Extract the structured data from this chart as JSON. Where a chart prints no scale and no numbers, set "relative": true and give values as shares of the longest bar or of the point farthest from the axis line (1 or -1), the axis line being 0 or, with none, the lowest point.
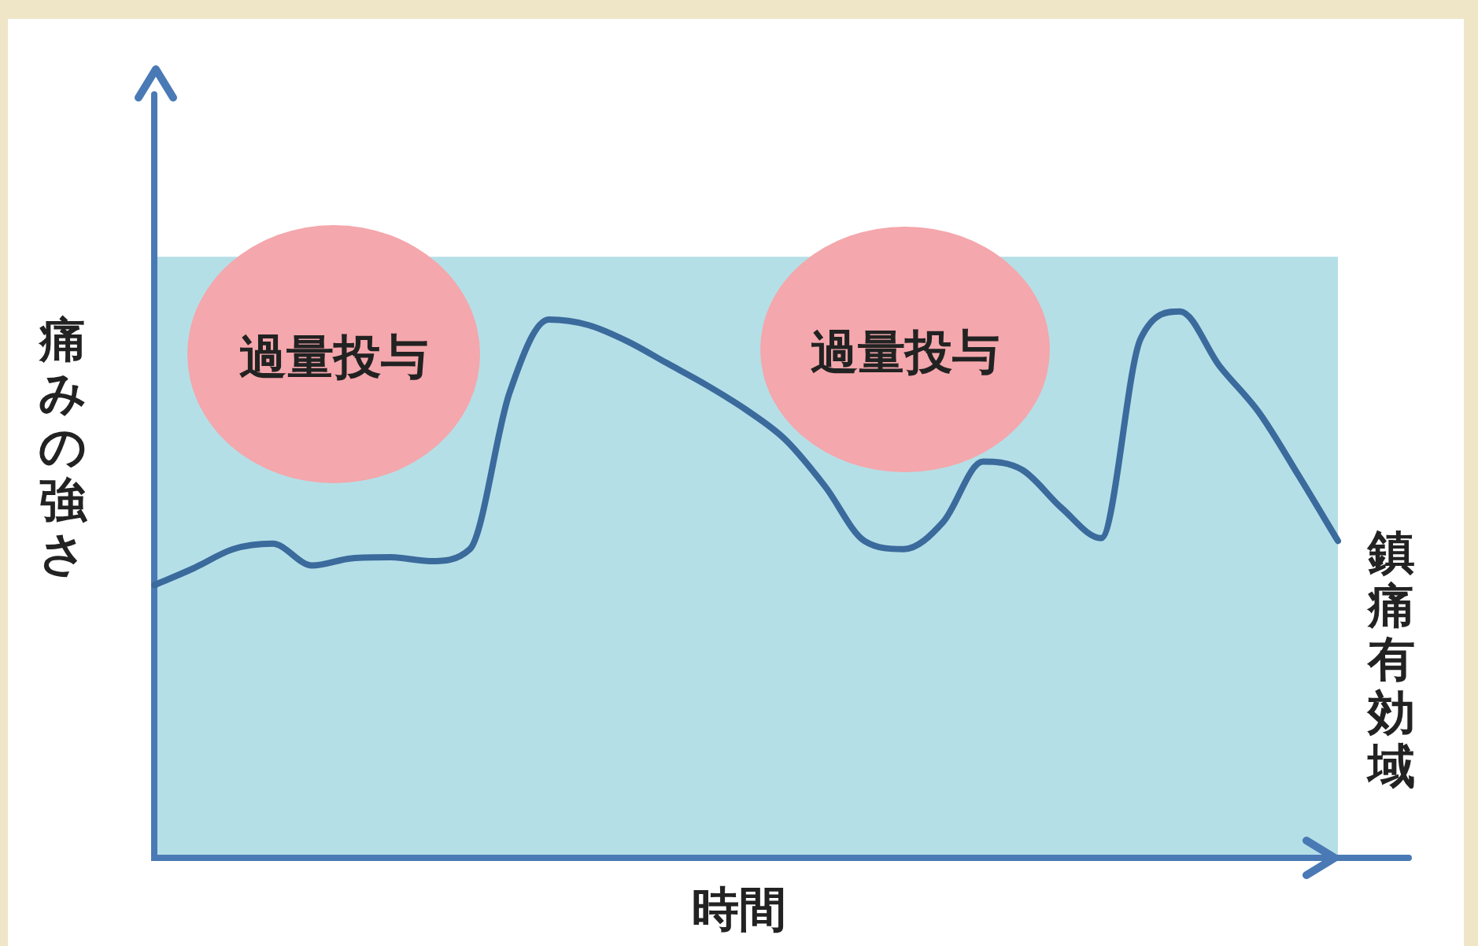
{
  "chart_data": {
    "type": "line",
    "relative": true,
    "xlabel": "時間",
    "ylabel": "痛みの強さ",
    "categories": [
      null,
      null,
      null,
      null,
      null,
      null,
      null,
      null,
      null,
      null,
      null,
      null,
      null,
      null,
      null,
      null,
      null,
      null,
      null,
      null,
      null,
      null,
      null,
      null,
      null,
      null,
      null,
      null,
      null,
      null,
      null
    ],
    "series": [
      {
        "color": "#3b6a9c",
        "values": [
          0.499,
          0.53,
          0.565,
          0.575,
          0.535,
          0.548,
          0.55,
          0.543,
          0.565,
          0.85,
          0.985,
          0.975,
          0.945,
          0.905,
          0.865,
          0.82,
          0.765,
          0.68,
          0.58,
          0.565,
          0.615,
          0.725,
          0.71,
          0.64,
          0.585,
          0.95,
          1.0,
          0.9,
          0.815,
          0.7,
          0.58
        ]
      }
    ],
    "bands": [
      {
        "axis": "y",
        "from": 0,
        "to": 1.1,
        "label": "鎮痛有効域",
        "color": "#b5dfe7"
      }
    ],
    "annotations": [
      "過量投与",
      "過量投与"
    ],
    "legend": false,
    "marker": "none",
    "line_style": "solid"
  }
}
